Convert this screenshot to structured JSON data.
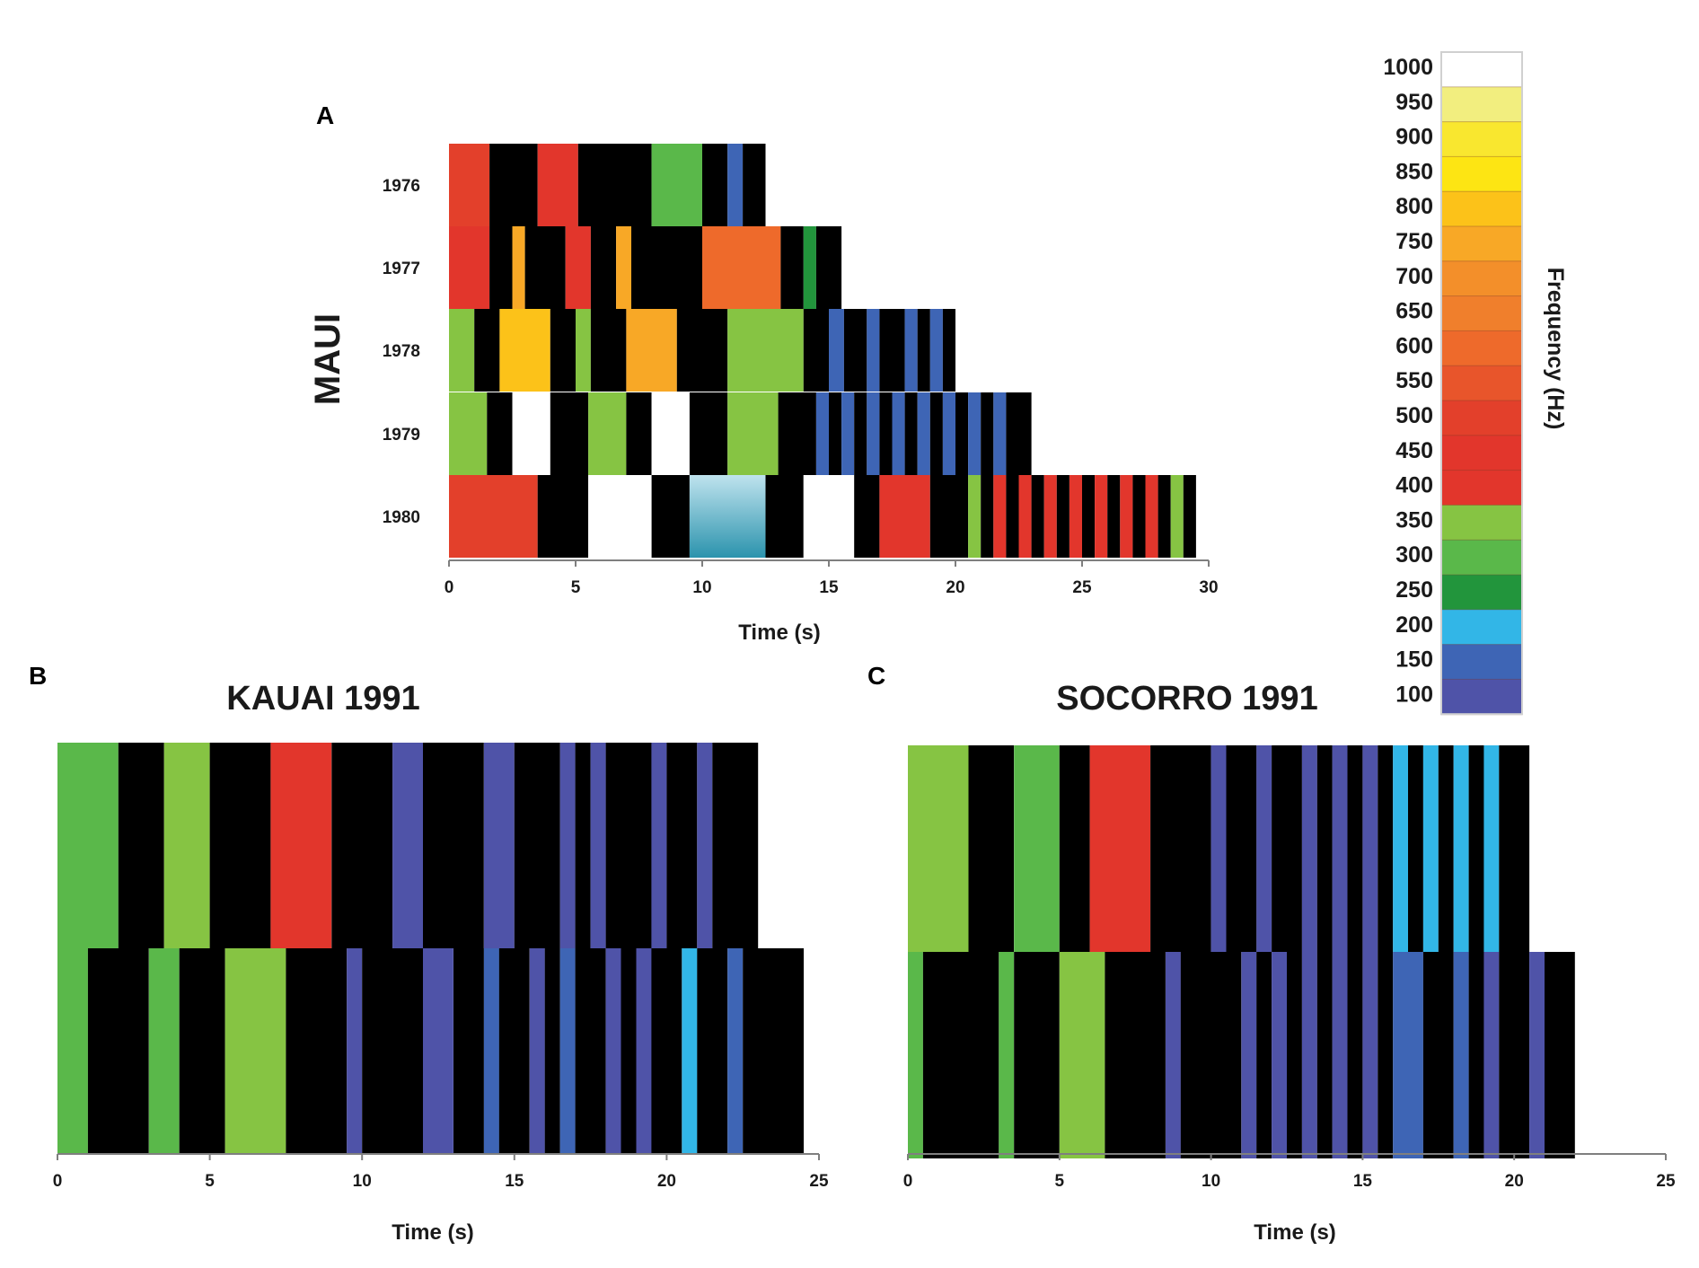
{
  "colors": {
    "black": "#000000",
    "white": "#ffffff",
    "100": "#4f53a8",
    "150": "#3e65b5",
    "200": "#32b6e7",
    "250": "#22953c",
    "300": "#5ab84a",
    "350": "#86c443",
    "400": "#e2362c",
    "450": "#e2362c",
    "500": "#e3402b",
    "550": "#e8552b",
    "600": "#ee6a2b",
    "650": "#f07f2c",
    "700": "#f38f2a",
    "750": "#f8a826",
    "800": "#fcc219",
    "850": "#fde513",
    "900": "#f9e72f",
    "950": "#f2ee7f",
    "1000": "#ffffff",
    "cyan_gradient_top": "#bfe3ee",
    "cyan_gradient_bottom": "#2b93ad"
  },
  "chart_data": [
    {
      "id": "A",
      "panel_label": "A",
      "type": "heatmap",
      "title": "",
      "ylabel": "MAUI",
      "xlabel": "Time (s)",
      "xlim": [
        0,
        30
      ],
      "xticks": [
        0,
        5,
        10,
        15,
        20,
        25,
        30
      ],
      "rows": [
        {
          "label": "1976",
          "start": 0,
          "segments": [
            [
              0,
              1.6,
              "500"
            ],
            [
              1.6,
              3.5,
              "black"
            ],
            [
              3.5,
              5.1,
              "450"
            ],
            [
              5.1,
              8,
              "black"
            ],
            [
              8,
              10,
              "300"
            ],
            [
              10,
              11,
              "black"
            ],
            [
              11,
              11.6,
              "150"
            ],
            [
              11.6,
              12.5,
              "black"
            ]
          ]
        },
        {
          "label": "1977",
          "start": 0,
          "segments": [
            [
              0,
              1.6,
              "450"
            ],
            [
              1.6,
              2.5,
              "black"
            ],
            [
              2.5,
              3,
              "750"
            ],
            [
              3,
              4.6,
              "black"
            ],
            [
              4.6,
              5.6,
              "450"
            ],
            [
              5.6,
              6.6,
              "black"
            ],
            [
              6.6,
              7.2,
              "750"
            ],
            [
              7.2,
              10,
              "black"
            ],
            [
              10,
              13.1,
              "600"
            ],
            [
              13.1,
              14,
              "black"
            ],
            [
              14,
              14.5,
              "250"
            ],
            [
              14.5,
              15.5,
              "black"
            ]
          ]
        },
        {
          "label": "1978",
          "start": 0,
          "segments": [
            [
              0,
              1,
              "350"
            ],
            [
              1,
              2,
              "black"
            ],
            [
              2,
              4,
              "800"
            ],
            [
              4,
              5,
              "black"
            ],
            [
              5,
              5.6,
              "350"
            ],
            [
              5.6,
              7,
              "black"
            ],
            [
              7,
              9,
              "750"
            ],
            [
              9,
              11,
              "black"
            ],
            [
              11,
              14,
              "350"
            ],
            [
              14,
              15,
              "black"
            ],
            [
              15,
              15.6,
              "150"
            ],
            [
              15.6,
              16.5,
              "black"
            ],
            [
              16.5,
              17,
              "150"
            ],
            [
              17,
              18,
              "black"
            ],
            [
              18,
              18.5,
              "150"
            ],
            [
              18.5,
              19,
              "black"
            ],
            [
              19,
              19.5,
              "150"
            ],
            [
              19.5,
              20,
              "black"
            ]
          ]
        },
        {
          "label": "1979",
          "start": 0,
          "segments": [
            [
              0,
              1.5,
              "350"
            ],
            [
              1.5,
              2.5,
              "black"
            ],
            [
              2.5,
              4,
              "white"
            ],
            [
              4,
              5.5,
              "black"
            ],
            [
              5.5,
              7,
              "350"
            ],
            [
              7,
              8,
              "black"
            ],
            [
              8,
              9.5,
              "white"
            ],
            [
              9.5,
              11,
              "black"
            ],
            [
              11,
              13,
              "350"
            ],
            [
              13,
              14.5,
              "black"
            ],
            [
              14.5,
              15,
              "150"
            ],
            [
              15,
              15.5,
              "black"
            ],
            [
              15.5,
              16,
              "150"
            ],
            [
              16,
              16.5,
              "black"
            ],
            [
              16.5,
              17,
              "150"
            ],
            [
              17,
              17.5,
              "black"
            ],
            [
              17.5,
              18,
              "150"
            ],
            [
              18,
              18.5,
              "black"
            ],
            [
              18.5,
              19,
              "150"
            ],
            [
              19,
              19.5,
              "black"
            ],
            [
              19.5,
              20,
              "150"
            ],
            [
              20,
              20.5,
              "black"
            ],
            [
              20.5,
              21,
              "150"
            ],
            [
              21,
              21.5,
              "black"
            ],
            [
              21.5,
              22,
              "150"
            ],
            [
              22,
              23,
              "black"
            ]
          ]
        },
        {
          "label": "1980",
          "start": 0,
          "segments": [
            [
              0,
              3.5,
              "500"
            ],
            [
              3.5,
              5.5,
              "black"
            ],
            [
              5.5,
              8,
              "white"
            ],
            [
              8,
              9.5,
              "black"
            ],
            [
              9.5,
              12.5,
              "cyan_gradient"
            ],
            [
              12.5,
              14,
              "black"
            ],
            [
              14,
              16,
              "white"
            ],
            [
              16,
              17,
              "black"
            ],
            [
              17,
              19,
              "450"
            ],
            [
              19,
              20.5,
              "black"
            ],
            [
              20.5,
              21,
              "350"
            ],
            [
              21,
              21.5,
              "black"
            ],
            [
              21.5,
              22,
              "450"
            ],
            [
              22,
              22.5,
              "black"
            ],
            [
              22.5,
              23,
              "450"
            ],
            [
              23,
              23.5,
              "black"
            ],
            [
              23.5,
              24,
              "450"
            ],
            [
              24,
              24.5,
              "black"
            ],
            [
              24.5,
              25,
              "450"
            ],
            [
              25,
              25.5,
              "black"
            ],
            [
              25.5,
              26,
              "450"
            ],
            [
              26,
              26.5,
              "black"
            ],
            [
              26.5,
              27,
              "450"
            ],
            [
              27,
              27.5,
              "black"
            ],
            [
              27.5,
              28,
              "450"
            ],
            [
              28,
              28.5,
              "black"
            ],
            [
              28.5,
              29,
              "350"
            ],
            [
              29,
              29.5,
              "black"
            ]
          ]
        }
      ]
    },
    {
      "id": "B",
      "panel_label": "B",
      "type": "heatmap",
      "title": "KAUAI 1991",
      "ylabel": "",
      "xlabel": "Time (s)",
      "xlim": [
        0,
        25
      ],
      "xticks": [
        0,
        5,
        10,
        15,
        20,
        25
      ],
      "rows": [
        {
          "label": "",
          "start": 0,
          "segments": [
            [
              0,
              2,
              "300"
            ],
            [
              2,
              3.5,
              "black"
            ],
            [
              3.5,
              5,
              "350"
            ],
            [
              5,
              7,
              "black"
            ],
            [
              7,
              9,
              "450"
            ],
            [
              9,
              11,
              "black"
            ],
            [
              11,
              12,
              "100"
            ],
            [
              12,
              14,
              "black"
            ],
            [
              14,
              15,
              "100"
            ],
            [
              15,
              16.5,
              "black"
            ],
            [
              16.5,
              17,
              "100"
            ],
            [
              17,
              17.5,
              "black"
            ],
            [
              17.5,
              18,
              "100"
            ],
            [
              18,
              19.5,
              "black"
            ],
            [
              19.5,
              20,
              "100"
            ],
            [
              20,
              21,
              "black"
            ],
            [
              21,
              21.5,
              "100"
            ],
            [
              21.5,
              23,
              "black"
            ]
          ]
        },
        {
          "label": "",
          "start": 0,
          "segments": [
            [
              0,
              1,
              "300"
            ],
            [
              1,
              3,
              "black"
            ],
            [
              3,
              4,
              "300"
            ],
            [
              4,
              5.5,
              "black"
            ],
            [
              5.5,
              7.5,
              "350"
            ],
            [
              7.5,
              9.5,
              "black"
            ],
            [
              9.5,
              10,
              "100"
            ],
            [
              10,
              12,
              "black"
            ],
            [
              12,
              13,
              "100"
            ],
            [
              13,
              14,
              "black"
            ],
            [
              14,
              14.5,
              "150"
            ],
            [
              14.5,
              15.5,
              "black"
            ],
            [
              15.5,
              16,
              "100"
            ],
            [
              16,
              16.5,
              "black"
            ],
            [
              16.5,
              17,
              "150"
            ],
            [
              17,
              18,
              "black"
            ],
            [
              18,
              18.5,
              "100"
            ],
            [
              18.5,
              19,
              "black"
            ],
            [
              19,
              19.5,
              "100"
            ],
            [
              19.5,
              20.5,
              "black"
            ],
            [
              20.5,
              21,
              "200"
            ],
            [
              21,
              22,
              "black"
            ],
            [
              22,
              22.5,
              "150"
            ],
            [
              22.5,
              24.5,
              "black"
            ]
          ]
        }
      ]
    },
    {
      "id": "C",
      "panel_label": "C",
      "type": "heatmap",
      "title": "SOCORRO 1991",
      "ylabel": "",
      "xlabel": "Time (s)",
      "xlim": [
        0,
        25
      ],
      "xticks": [
        0,
        5,
        10,
        15,
        20,
        25
      ],
      "rows": [
        {
          "label": "",
          "start": 0,
          "segments": [
            [
              0,
              2,
              "350"
            ],
            [
              2,
              3.5,
              "black"
            ],
            [
              3.5,
              5,
              "300"
            ],
            [
              5,
              6,
              "black"
            ],
            [
              6,
              8,
              "450"
            ],
            [
              8,
              10,
              "black"
            ],
            [
              10,
              10.5,
              "100"
            ],
            [
              10.5,
              11.5,
              "black"
            ],
            [
              11.5,
              12,
              "100"
            ],
            [
              12,
              13,
              "black"
            ],
            [
              13,
              13.5,
              "100"
            ],
            [
              13.5,
              14,
              "black"
            ],
            [
              14,
              14.5,
              "100"
            ],
            [
              14.5,
              15,
              "black"
            ],
            [
              15,
              15.5,
              "100"
            ],
            [
              15.5,
              16,
              "black"
            ],
            [
              16,
              16.5,
              "200"
            ],
            [
              16.5,
              17,
              "black"
            ],
            [
              17,
              17.5,
              "200"
            ],
            [
              17.5,
              18,
              "black"
            ],
            [
              18,
              18.5,
              "200"
            ],
            [
              18.5,
              19,
              "black"
            ],
            [
              19,
              19.5,
              "200"
            ],
            [
              19.5,
              20.5,
              "black"
            ]
          ]
        },
        {
          "label": "",
          "start": 0,
          "segments": [
            [
              0,
              0.5,
              "300"
            ],
            [
              0.5,
              3,
              "black"
            ],
            [
              3,
              3.5,
              "300"
            ],
            [
              3.5,
              5,
              "black"
            ],
            [
              5,
              6.5,
              "350"
            ],
            [
              6.5,
              8.5,
              "black"
            ],
            [
              8.5,
              9,
              "100"
            ],
            [
              9,
              11,
              "black"
            ],
            [
              11,
              11.5,
              "100"
            ],
            [
              11.5,
              12,
              "black"
            ],
            [
              12,
              12.5,
              "100"
            ],
            [
              12.5,
              13,
              "black"
            ],
            [
              13,
              13.5,
              "100"
            ],
            [
              13.5,
              14,
              "black"
            ],
            [
              14,
              14.5,
              "100"
            ],
            [
              14.5,
              15,
              "black"
            ],
            [
              15,
              15.5,
              "100"
            ],
            [
              15.5,
              16,
              "black"
            ],
            [
              16,
              16.5,
              "150"
            ],
            [
              16.5,
              17,
              "150"
            ],
            [
              17,
              18,
              "black"
            ],
            [
              18,
              18.5,
              "150"
            ],
            [
              18.5,
              19,
              "black"
            ],
            [
              19,
              19.5,
              "100"
            ],
            [
              19.5,
              20.5,
              "black"
            ],
            [
              20.5,
              21,
              "100"
            ],
            [
              21,
              22,
              "black"
            ]
          ]
        }
      ]
    }
  ],
  "colorbar": {
    "label": "Frequency (Hz)",
    "ticks": [
      "1000",
      "950",
      "900",
      "850",
      "800",
      "750",
      "700",
      "650",
      "600",
      "550",
      "500",
      "450",
      "400",
      "350",
      "300",
      "250",
      "200",
      "150",
      "100"
    ]
  }
}
